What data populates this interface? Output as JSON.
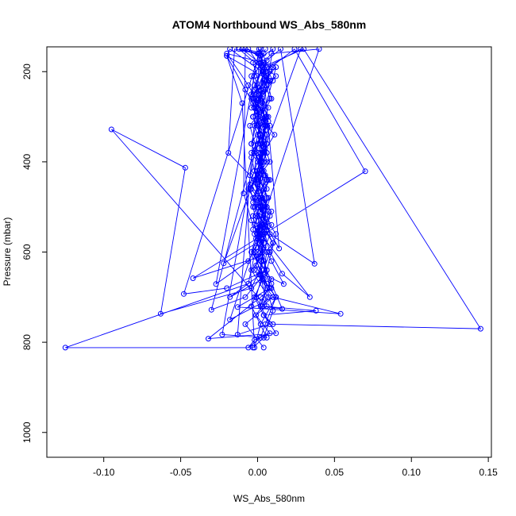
{
  "chart_data": {
    "type": "line",
    "title": "ATOM4 Northbound WS_Abs_580nm",
    "xlabel": "WS_Abs_580nm",
    "ylabel": "Pressure (mbar)",
    "xlim": [
      -0.137,
      0.152
    ],
    "ylim": [
      1055,
      145
    ],
    "y_reversed": true,
    "x_ticks": [
      -0.1,
      -0.05,
      0.0,
      0.05,
      0.1,
      0.15
    ],
    "x_tick_labels": [
      "-0.10",
      "-0.05",
      "0.00",
      "0.05",
      "0.10",
      "0.15"
    ],
    "y_ticks": [
      200,
      400,
      600,
      800,
      1000
    ],
    "y_tick_labels": [
      "200",
      "400",
      "600",
      "800",
      "1000"
    ],
    "grid": false,
    "legend": "none",
    "colors": {
      "series": "#0000ff",
      "axes": "#000000",
      "background": "#ffffff"
    },
    "series": [
      {
        "points": [
          [
            0.004,
            812
          ],
          [
            -0.008,
            760
          ],
          [
            0.006,
            720
          ],
          [
            0.002,
            650
          ],
          [
            0.004,
            560
          ],
          [
            -0.002,
            500
          ],
          [
            0.008,
            440
          ],
          [
            -0.004,
            380
          ],
          [
            0.006,
            320
          ],
          [
            0.001,
            260
          ],
          [
            0.004,
            200
          ],
          [
            -0.006,
            150
          ],
          [
            0.01,
            190
          ],
          [
            0.002,
            250
          ],
          [
            -0.003,
            300
          ],
          [
            0.006,
            360
          ],
          [
            0.003,
            420
          ],
          [
            -0.002,
            480
          ],
          [
            0.009,
            540
          ],
          [
            0.0,
            600
          ],
          [
            0.004,
            660
          ],
          [
            0.012,
            700
          ],
          [
            0.005,
            760
          ],
          [
            0.002,
            790
          ],
          [
            -0.006,
            812
          ],
          [
            -0.002,
            795
          ],
          [
            0.008,
            780
          ],
          [
            -0.001,
            740
          ],
          [
            0.007,
            700
          ],
          [
            -0.004,
            640
          ],
          [
            0.01,
            580
          ],
          [
            -0.001,
            520
          ],
          [
            0.006,
            460
          ],
          [
            0.0,
            400
          ],
          [
            0.011,
            340
          ],
          [
            -0.004,
            280
          ],
          [
            0.007,
            220
          ],
          [
            0.002,
            165
          ],
          [
            -0.01,
            150
          ],
          [
            0.012,
            210
          ],
          [
            -0.003,
            270
          ],
          [
            0.005,
            330
          ],
          [
            0.001,
            390
          ],
          [
            -0.005,
            450
          ],
          [
            0.009,
            510
          ],
          [
            0.002,
            570
          ],
          [
            -0.001,
            630
          ],
          [
            0.006,
            680
          ],
          [
            0.01,
            730
          ],
          [
            0.004,
            790
          ],
          [
            -0.003,
            812
          ],
          [
            -0.125,
            812
          ],
          [
            -0.006,
            670
          ],
          [
            -0.001,
            590
          ],
          [
            0.004,
            520
          ],
          [
            -0.006,
            460
          ],
          [
            0.008,
            400
          ],
          [
            0.002,
            340
          ],
          [
            -0.002,
            280
          ],
          [
            0.01,
            220
          ],
          [
            0.004,
            180
          ],
          [
            -0.02,
            160
          ],
          [
            -0.006,
            230
          ],
          [
            0.005,
            300
          ],
          [
            0.0,
            360
          ],
          [
            -0.002,
            420
          ],
          [
            0.007,
            480
          ],
          [
            0.001,
            540
          ],
          [
            -0.004,
            600
          ],
          [
            0.009,
            660
          ],
          [
            0.003,
            710
          ],
          [
            -0.095,
            328
          ],
          [
            -0.047,
            413
          ],
          [
            -0.063,
            737
          ],
          [
            -0.004,
            680
          ],
          [
            0.004,
            620
          ],
          [
            0.001,
            560
          ],
          [
            -0.003,
            500
          ],
          [
            0.006,
            440
          ],
          [
            0.0,
            380
          ],
          [
            -0.005,
            320
          ],
          [
            0.008,
            260
          ],
          [
            0.003,
            200
          ],
          [
            -0.018,
            150
          ],
          [
            -0.02,
            165
          ],
          [
            -0.008,
            240
          ],
          [
            0.004,
            310
          ],
          [
            0.006,
            380
          ],
          [
            -0.001,
            440
          ],
          [
            0.003,
            500
          ],
          [
            0.008,
            560
          ],
          [
            0.002,
            620
          ],
          [
            0.009,
            680
          ],
          [
            0.002,
            700
          ],
          [
            -0.032,
            792
          ],
          [
            0.012,
            780
          ],
          [
            0.004,
            740
          ],
          [
            -0.002,
            700
          ],
          [
            0.006,
            640
          ],
          [
            0.012,
            560
          ],
          [
            0.0,
            500
          ],
          [
            0.007,
            440
          ],
          [
            -0.002,
            380
          ],
          [
            0.005,
            320
          ],
          [
            0.003,
            260
          ],
          [
            -0.004,
            210
          ],
          [
            0.009,
            160
          ],
          [
            0.04,
            150
          ],
          [
            -0.018,
            750
          ],
          [
            0.01,
            700
          ],
          [
            -0.002,
            640
          ],
          [
            0.004,
            580
          ],
          [
            0.008,
            520
          ],
          [
            -0.004,
            460
          ],
          [
            0.004,
            400
          ],
          [
            0.0,
            340
          ],
          [
            0.007,
            280
          ],
          [
            -0.002,
            230
          ],
          [
            0.006,
            175
          ],
          [
            0.015,
            150
          ],
          [
            0.037,
            626
          ],
          [
            0.008,
            560
          ],
          [
            0.002,
            500
          ],
          [
            -0.002,
            440
          ],
          [
            0.006,
            380
          ],
          [
            0.0,
            320
          ],
          [
            -0.004,
            260
          ],
          [
            0.005,
            200
          ],
          [
            0.024,
            150
          ],
          [
            0.07,
            421
          ],
          [
            -0.042,
            658
          ],
          [
            0.002,
            610
          ],
          [
            0.006,
            550
          ],
          [
            -0.003,
            490
          ],
          [
            0.004,
            430
          ],
          [
            0.001,
            370
          ],
          [
            0.007,
            310
          ],
          [
            -0.004,
            250
          ],
          [
            0.003,
            190
          ],
          [
            0.03,
            150
          ],
          [
            0.145,
            770
          ],
          [
            0.01,
            760
          ],
          [
            0.004,
            740
          ],
          [
            0.038,
            730
          ],
          [
            0.003,
            720
          ],
          [
            0.01,
            700
          ],
          [
            0.054,
            737
          ],
          [
            -0.013,
            722
          ],
          [
            0.008,
            680
          ],
          [
            0.004,
            620
          ],
          [
            -0.002,
            560
          ],
          [
            0.006,
            500
          ],
          [
            0.0,
            440
          ],
          [
            0.004,
            380
          ],
          [
            0.008,
            320
          ],
          [
            -0.002,
            260
          ],
          [
            0.006,
            210
          ],
          [
            0.001,
            160
          ],
          [
            -0.012,
            150
          ],
          [
            0.005,
            200
          ],
          [
            0.009,
            260
          ],
          [
            -0.002,
            320
          ],
          [
            0.004,
            380
          ],
          [
            0.0,
            440
          ],
          [
            0.006,
            500
          ],
          [
            0.002,
            560
          ],
          [
            0.034,
            700
          ],
          [
            0.016,
            648
          ],
          [
            0.008,
            600
          ],
          [
            0.003,
            540
          ],
          [
            -0.003,
            480
          ],
          [
            0.004,
            420
          ],
          [
            0.002,
            360
          ],
          [
            0.007,
            300
          ],
          [
            -0.002,
            240
          ],
          [
            0.004,
            185
          ],
          [
            0.001,
            150
          ],
          [
            -0.027,
            671
          ],
          [
            -0.006,
            620
          ],
          [
            0.003,
            560
          ],
          [
            0.006,
            500
          ],
          [
            -0.001,
            440
          ],
          [
            0.002,
            380
          ],
          [
            0.005,
            320
          ],
          [
            -0.003,
            260
          ],
          [
            0.008,
            200
          ],
          [
            0.002,
            150
          ],
          [
            -0.048,
            693
          ],
          [
            -0.02,
            680
          ],
          [
            0.006,
            640
          ],
          [
            0.001,
            580
          ],
          [
            -0.003,
            520
          ],
          [
            0.004,
            460
          ],
          [
            0.002,
            400
          ],
          [
            0.006,
            340
          ],
          [
            -0.001,
            280
          ],
          [
            0.004,
            220
          ],
          [
            0.012,
            190
          ],
          [
            -0.03,
            728
          ],
          [
            -0.008,
            700
          ],
          [
            0.004,
            650
          ],
          [
            0.017,
            671
          ],
          [
            0.009,
            620
          ],
          [
            0.0,
            560
          ],
          [
            0.004,
            500
          ],
          [
            -0.002,
            440
          ],
          [
            0.003,
            380
          ],
          [
            0.005,
            320
          ],
          [
            -0.001,
            260
          ],
          [
            0.004,
            205
          ],
          [
            0.014,
            592
          ],
          [
            0.005,
            540
          ],
          [
            0.0,
            480
          ],
          [
            0.003,
            420
          ],
          [
            -0.004,
            360
          ],
          [
            0.006,
            300
          ],
          [
            0.002,
            240
          ],
          [
            -0.003,
            180
          ],
          [
            0.01,
            150
          ],
          [
            -0.023,
            783
          ],
          [
            0.006,
            790
          ],
          [
            -0.004,
            720
          ],
          [
            0.003,
            660
          ],
          [
            -0.002,
            600
          ],
          [
            0.004,
            540
          ],
          [
            0.006,
            480
          ],
          [
            0.0,
            420
          ],
          [
            0.004,
            360
          ],
          [
            -0.003,
            300
          ],
          [
            0.005,
            240
          ],
          [
            0.001,
            180
          ],
          [
            -0.013,
            783
          ],
          [
            0.008,
            760
          ],
          [
            -0.001,
            700
          ],
          [
            0.004,
            640
          ],
          [
            0.01,
            580
          ],
          [
            0.001,
            520
          ],
          [
            -0.005,
            460
          ],
          [
            0.006,
            400
          ],
          [
            0.002,
            340
          ],
          [
            -0.001,
            280
          ],
          [
            0.006,
            220
          ],
          [
            0.0,
            160
          ],
          [
            -0.015,
            150
          ],
          [
            -0.019,
            380
          ],
          [
            -0.005,
            430
          ],
          [
            0.004,
            490
          ],
          [
            0.001,
            550
          ],
          [
            -0.002,
            610
          ],
          [
            0.006,
            670
          ],
          [
            0.002,
            720
          ],
          [
            0.016,
            726
          ],
          [
            0.009,
            670
          ],
          [
            0.003,
            610
          ],
          [
            -0.003,
            550
          ],
          [
            0.004,
            490
          ],
          [
            0.0,
            430
          ],
          [
            0.005,
            370
          ],
          [
            0.001,
            310
          ],
          [
            -0.002,
            250
          ],
          [
            0.006,
            190
          ],
          [
            0.028,
            150
          ],
          [
            -0.022,
            625
          ],
          [
            0.004,
            570
          ],
          [
            0.007,
            510
          ],
          [
            0.0,
            450
          ],
          [
            -0.004,
            390
          ],
          [
            0.005,
            330
          ],
          [
            0.003,
            270
          ],
          [
            -0.002,
            210
          ],
          [
            0.004,
            160
          ],
          [
            -0.008,
            150
          ],
          [
            -0.009,
            470
          ],
          [
            -0.004,
            530
          ],
          [
            0.004,
            590
          ],
          [
            0.001,
            650
          ],
          [
            0.012,
            700
          ],
          [
            0.002,
            760
          ],
          [
            -0.002,
            812
          ],
          [
            -0.01,
            270
          ],
          [
            -0.02,
            165
          ],
          [
            0.008,
            220
          ],
          [
            0.001,
            290
          ],
          [
            -0.004,
            360
          ],
          [
            0.005,
            430
          ],
          [
            0.002,
            500
          ],
          [
            -0.001,
            570
          ],
          [
            0.006,
            640
          ],
          [
            -0.018,
            700
          ],
          [
            0.003,
            660
          ],
          [
            0.006,
            600
          ],
          [
            -0.002,
            540
          ],
          [
            0.003,
            480
          ],
          [
            0.0,
            420
          ],
          [
            0.006,
            360
          ],
          [
            -0.003,
            300
          ],
          [
            0.004,
            240
          ],
          [
            0.002,
            180
          ],
          [
            0.005,
            150
          ]
        ]
      }
    ]
  }
}
